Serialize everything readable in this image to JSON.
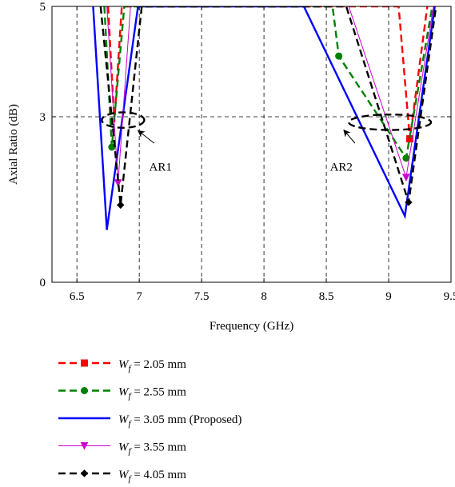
{
  "chart_data": {
    "type": "line",
    "xlabel": "Frequency (GHz)",
    "ylabel": "Axial Ratio (dB)",
    "xlim": [
      6.3,
      9.5
    ],
    "ylim": [
      0,
      5
    ],
    "xticks": [
      6.5,
      7,
      7.5,
      8,
      8.5,
      9,
      9.5
    ],
    "yticks": [
      0,
      3,
      5
    ],
    "grid": "dashed vertical at x ticks, dashed horizontal at y = 3",
    "legend_position": "below the plot",
    "series": [
      {
        "name_prefix": "W",
        "name_sub": "f",
        "name_suffix": " = 2.05 mm",
        "color": "#ff0000",
        "dash": "dashed",
        "marker": "square",
        "points": [
          [
            6.75,
            5.0
          ],
          [
            6.8,
            2.9
          ],
          [
            6.86,
            5.0
          ],
          [
            9.08,
            5.0
          ],
          [
            9.17,
            2.6
          ],
          [
            9.31,
            5.0
          ]
        ],
        "marker_points": [
          [
            9.17,
            2.6
          ]
        ]
      },
      {
        "name_prefix": "W",
        "name_sub": "f",
        "name_suffix": " = 2.55 mm",
        "color": "#008000",
        "dash": "dashed",
        "marker": "circle",
        "points": [
          [
            6.72,
            5.0
          ],
          [
            6.78,
            2.45
          ],
          [
            6.88,
            5.0
          ],
          [
            8.55,
            5.0
          ],
          [
            8.6,
            4.1
          ],
          [
            9.14,
            2.25
          ],
          [
            9.35,
            5.0
          ]
        ],
        "marker_points": [
          [
            6.78,
            2.45
          ],
          [
            8.6,
            4.1
          ],
          [
            9.14,
            2.25
          ]
        ]
      },
      {
        "name_prefix": "W",
        "name_sub": "f",
        "name_suffix": " = 3.05 mm (Proposed)",
        "color": "#0000ff",
        "dash": "solid",
        "marker": "none",
        "points": [
          [
            6.63,
            5.0
          ],
          [
            6.74,
            0.95
          ],
          [
            6.99,
            5.0
          ],
          [
            8.32,
            5.0
          ],
          [
            9.13,
            1.2
          ],
          [
            9.37,
            5.0
          ]
        ],
        "marker_points": []
      },
      {
        "name_prefix": "W",
        "name_sub": "f",
        "name_suffix": " = 3.55 mm",
        "color": "#cc00cc",
        "dash": "solid",
        "marker": "triangle-down",
        "points": [
          [
            6.74,
            5.0
          ],
          [
            6.83,
            1.8
          ],
          [
            6.93,
            5.0
          ],
          [
            8.68,
            5.0
          ],
          [
            9.14,
            1.9
          ],
          [
            9.36,
            5.0
          ]
        ],
        "marker_points": [
          [
            6.83,
            1.8
          ],
          [
            9.14,
            1.9
          ]
        ]
      },
      {
        "name_prefix": "W",
        "name_sub": "f",
        "name_suffix": " = 4.05 mm",
        "color": "#000000",
        "dash": "dashed",
        "marker": "diamond",
        "points": [
          [
            6.69,
            5.0
          ],
          [
            6.85,
            1.4
          ],
          [
            7.02,
            5.0
          ],
          [
            8.66,
            5.0
          ],
          [
            9.16,
            1.45
          ],
          [
            9.38,
            5.0
          ]
        ],
        "marker_points": [
          [
            6.85,
            1.4
          ],
          [
            9.16,
            1.45
          ]
        ]
      }
    ],
    "annotations": [
      {
        "text": "AR1",
        "ellipse_center": [
          6.87,
          2.94
        ],
        "ellipse_radius_data": [
          0.17,
          0.14
        ],
        "arrow_from": [
          7.12,
          2.52
        ],
        "arrow_to": [
          6.99,
          2.75
        ],
        "label_at": [
          7.17,
          2.02
        ]
      },
      {
        "text": "AR2",
        "ellipse_center": [
          9.01,
          2.9
        ],
        "ellipse_radius_data": [
          0.33,
          0.14
        ],
        "arrow_from": [
          8.73,
          2.52
        ],
        "arrow_to": [
          8.64,
          2.76
        ],
        "label_at": [
          8.62,
          2.02
        ]
      }
    ]
  }
}
